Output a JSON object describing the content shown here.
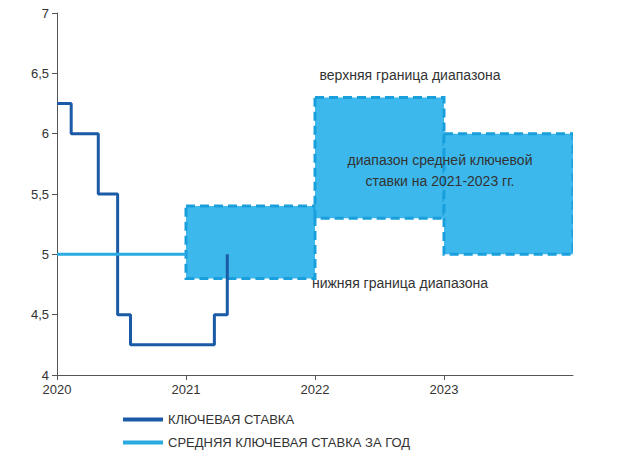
{
  "chart_data": {
    "type": "line",
    "xlim": [
      2020,
      2024
    ],
    "xticks": [
      2020,
      2021,
      2022,
      2023
    ],
    "ylim": [
      4,
      7
    ],
    "yticks": [
      4,
      {
        "value": 4.5,
        "label": "4,5"
      },
      5,
      {
        "value": 5.5,
        "label": "5,5"
      },
      6,
      {
        "value": 6.5,
        "label": "6,5"
      },
      7
    ],
    "grid": false,
    "legend": "bottom",
    "series": [
      {
        "name": "КЛЮЧЕВАЯ СТАВКА",
        "color": "#1b5aa6",
        "line_style": "step",
        "x": [
          2020,
          2020.11,
          2020.32,
          2020.47,
          2020.57,
          2021.22,
          2021.32
        ],
        "values": [
          6.25,
          6.0,
          5.5,
          4.5,
          4.25,
          4.5,
          5.0
        ]
      },
      {
        "name": "СРЕДНЯЯ КЛЮЧЕВАЯ СТАВКА ЗА ГОД",
        "color": "#29abe2",
        "line_style": "solid",
        "x": [
          2020,
          2021
        ],
        "values": [
          5.0,
          5.0
        ]
      }
    ],
    "range_bands": {
      "color": "#3db8ec",
      "periods": [
        {
          "start": 2021,
          "end": 2022,
          "low": 4.8,
          "high": 5.4
        },
        {
          "start": 2022,
          "end": 2023,
          "low": 5.3,
          "high": 6.3
        },
        {
          "start": 2023,
          "end": 2024,
          "low": 5.0,
          "high": 6.0
        }
      ]
    },
    "annotations": [
      "верхняя граница диапазона",
      "диапазон средней ключевой\nставки на 2021-2023 гг.",
      "нижняя граница диапазона"
    ]
  }
}
